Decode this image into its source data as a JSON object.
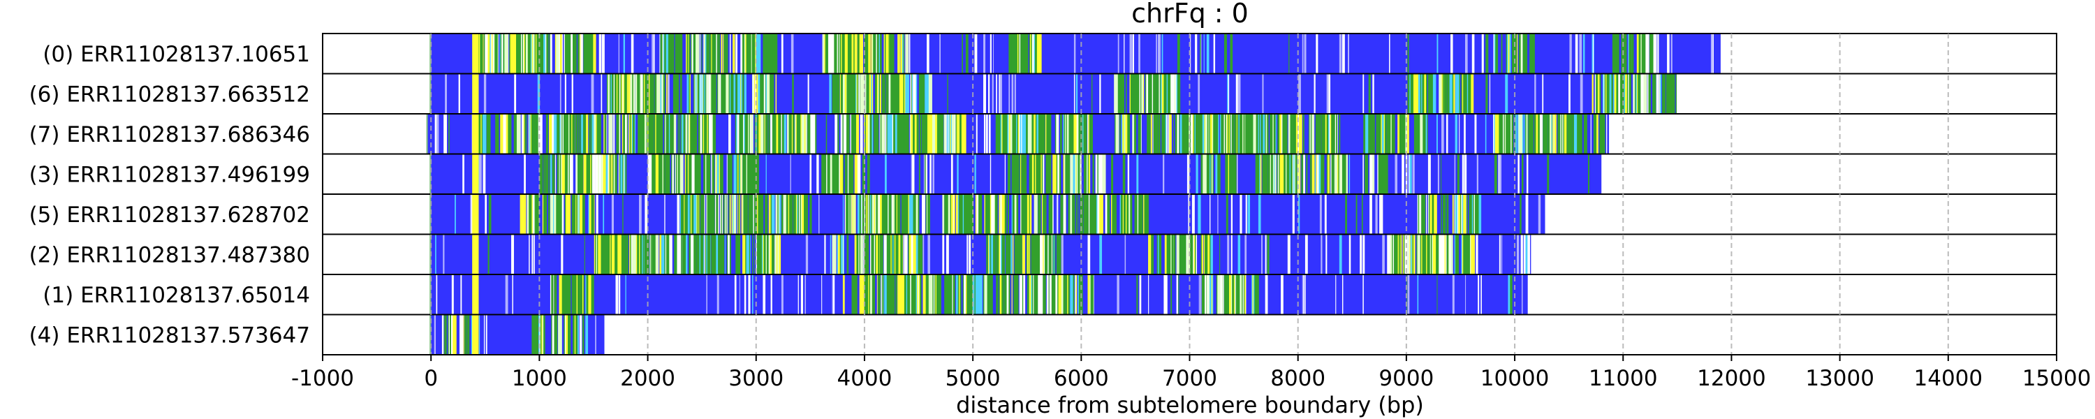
{
  "chart_data": {
    "type": "bar",
    "orientation": "horizontal",
    "title": "chrFq : 0",
    "xlabel": "distance from subtelomere boundary (bp)",
    "ylabel": "",
    "xlim": [
      -1000,
      15000
    ],
    "xticks": [
      -1000,
      0,
      1000,
      2000,
      3000,
      4000,
      5000,
      6000,
      7000,
      8000,
      9000,
      10000,
      11000,
      12000,
      13000,
      14000,
      15000
    ],
    "grid": "vertical dashed",
    "base_color": "#3333ff",
    "reads": [
      {
        "label": "(0) ERR11028137.10651",
        "start": 0,
        "end": 11900
      },
      {
        "label": "(6) ERR11028137.663512",
        "start": 0,
        "end": 11530
      },
      {
        "label": "(7) ERR11028137.686346",
        "start": -30,
        "end": 10870
      },
      {
        "label": "(3) ERR11028137.496199",
        "start": 0,
        "end": 10800
      },
      {
        "label": "(5) ERR11028137.628702",
        "start": 0,
        "end": 10280
      },
      {
        "label": "(2) ERR11028137.487380",
        "start": 0,
        "end": 10150
      },
      {
        "label": "(1) ERR11028137.65014",
        "start": 0,
        "end": 10120
      },
      {
        "label": "(4) ERR11028137.573647",
        "start": 0,
        "end": 1600
      }
    ],
    "feature_colors": [
      "#ffff33",
      "#33a02c",
      "#e5ffcc",
      "#ffffff",
      "#4dd2ff",
      "#b2b2ff"
    ],
    "highlight": {
      "start": 380,
      "end": 440,
      "color": "#ffff33"
    },
    "dense_regions": [
      {
        "read": 0,
        "ranges": [
          [
            400,
            1500
          ],
          [
            2100,
            3200
          ],
          [
            3600,
            4400
          ],
          [
            5300,
            5600
          ],
          [
            9800,
            10200
          ],
          [
            10900,
            11300
          ]
        ]
      },
      {
        "read": 1,
        "ranges": [
          [
            1600,
            3200
          ],
          [
            3700,
            4600
          ],
          [
            6300,
            6900
          ],
          [
            9000,
            9600
          ],
          [
            10700,
            11500
          ]
        ]
      },
      {
        "read": 2,
        "ranges": [
          [
            400,
            2600
          ],
          [
            2800,
            3500
          ],
          [
            3800,
            4900
          ],
          [
            5200,
            6100
          ],
          [
            6300,
            8400
          ],
          [
            8600,
            9200
          ],
          [
            9800,
            10800
          ]
        ]
      },
      {
        "read": 3,
        "ranges": [
          [
            1000,
            1800
          ],
          [
            2000,
            3000
          ],
          [
            3600,
            4000
          ],
          [
            5300,
            6200
          ],
          [
            7100,
            7400
          ],
          [
            7600,
            8500
          ],
          [
            8600,
            8800
          ]
        ]
      },
      {
        "read": 4,
        "ranges": [
          [
            800,
            1500
          ],
          [
            2300,
            3500
          ],
          [
            3800,
            4600
          ],
          [
            4700,
            5700
          ],
          [
            5800,
            6600
          ],
          [
            9100,
            9700
          ]
        ]
      },
      {
        "read": 5,
        "ranges": [
          [
            1500,
            3200
          ],
          [
            3700,
            4500
          ],
          [
            5100,
            5800
          ],
          [
            6600,
            7200
          ],
          [
            8800,
            9600
          ]
        ]
      },
      {
        "read": 6,
        "ranges": [
          [
            1100,
            1500
          ],
          [
            3800,
            4900
          ],
          [
            4600,
            6100
          ],
          [
            7100,
            7600
          ]
        ]
      },
      {
        "read": 7,
        "ranges": [
          [
            100,
            400
          ],
          [
            900,
            1400
          ]
        ]
      }
    ]
  }
}
